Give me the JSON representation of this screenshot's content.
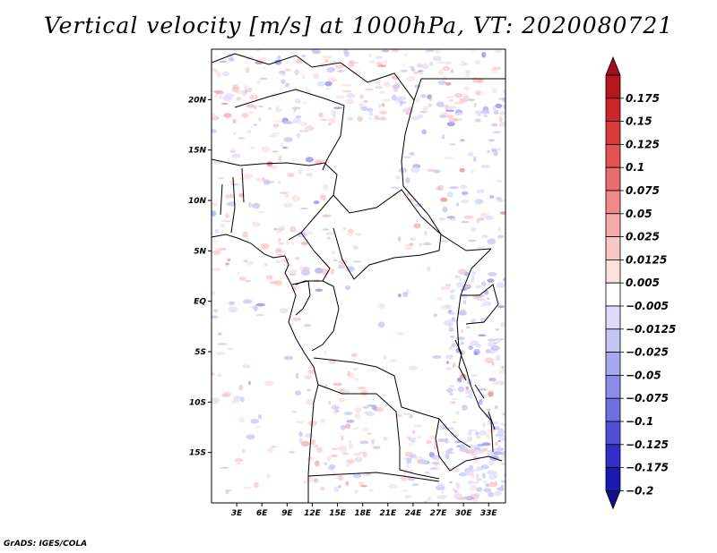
{
  "title": "Vertical velocity [m/s] at 1000hPa, VT: 2020080721",
  "footer": "GrADS: IGES/COLA",
  "map": {
    "lon_range": [
      0,
      35
    ],
    "lat_range": [
      -20,
      25
    ],
    "lat_ticks": [
      {
        "value": 20,
        "label": "20N"
      },
      {
        "value": 15,
        "label": "15N"
      },
      {
        "value": 10,
        "label": "10N"
      },
      {
        "value": 5,
        "label": "5N"
      },
      {
        "value": 0,
        "label": "EQ"
      },
      {
        "value": -5,
        "label": "5S"
      },
      {
        "value": -10,
        "label": "10S"
      },
      {
        "value": -15,
        "label": "15S"
      }
    ],
    "lon_ticks": [
      {
        "value": 3,
        "label": "3E"
      },
      {
        "value": 6,
        "label": "6E"
      },
      {
        "value": 9,
        "label": "9E"
      },
      {
        "value": 12,
        "label": "12E"
      },
      {
        "value": 15,
        "label": "15E"
      },
      {
        "value": 18,
        "label": "18E"
      },
      {
        "value": 21,
        "label": "21E"
      },
      {
        "value": 24,
        "label": "24E"
      },
      {
        "value": 27,
        "label": "27E"
      },
      {
        "value": 30,
        "label": "30E"
      },
      {
        "value": 33,
        "label": "33E"
      }
    ]
  },
  "colorbar": {
    "levels": [
      {
        "label": "0.175",
        "color": "#b4181c"
      },
      {
        "label": "0.15",
        "color": "#c8262b"
      },
      {
        "label": "0.125",
        "color": "#d83a3a"
      },
      {
        "label": "0.1",
        "color": "#e25252"
      },
      {
        "label": "0.075",
        "color": "#eb6c6c"
      },
      {
        "label": "0.05",
        "color": "#f08a8a"
      },
      {
        "label": "0.025",
        "color": "#f5a9a9"
      },
      {
        "label": "0.0125",
        "color": "#f9c6c6"
      },
      {
        "label": "0.005",
        "color": "#fce0e0"
      },
      {
        "label": "−0.005",
        "color": "#ffffff"
      },
      {
        "label": "−0.0125",
        "color": "#dcdcfa"
      },
      {
        "label": "−0.025",
        "color": "#c4c4f5"
      },
      {
        "label": "−0.05",
        "color": "#a8a8f0"
      },
      {
        "label": "−0.075",
        "color": "#8c8ce8"
      },
      {
        "label": "−0.1",
        "color": "#6e6ee0"
      },
      {
        "label": "−0.125",
        "color": "#5050d6"
      },
      {
        "label": "−0.175",
        "color": "#3030c8"
      },
      {
        "label": "−0.2",
        "color": "#1a1ab0"
      }
    ],
    "top_color": "#a01018",
    "bottom_color": "#10108c"
  }
}
